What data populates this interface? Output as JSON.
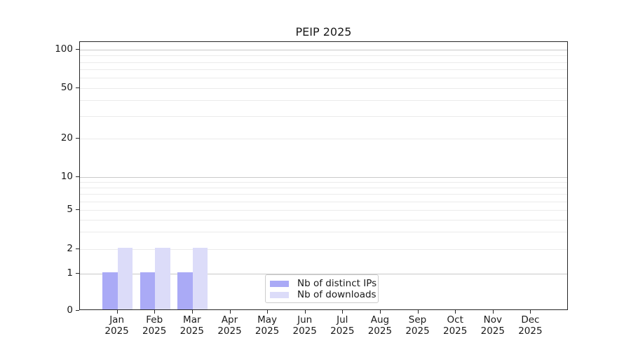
{
  "title": "PEIP 2025",
  "chart_data": {
    "type": "bar",
    "title": "PEIP 2025",
    "categories": [
      "Jan 2025",
      "Feb 2025",
      "Mar 2025",
      "Apr 2025",
      "May 2025",
      "Jun 2025",
      "Jul 2025",
      "Aug 2025",
      "Sep 2025",
      "Oct 2025",
      "Nov 2025",
      "Dec 2025"
    ],
    "series": [
      {
        "name": "Nb of distinct IPs",
        "color": "#aaaaf6",
        "values": [
          1,
          1,
          1,
          0,
          0,
          0,
          0,
          0,
          0,
          0,
          0,
          0
        ]
      },
      {
        "name": "Nb of downloads",
        "color": "#dcdcf9",
        "values": [
          2,
          2,
          2,
          0,
          0,
          0,
          0,
          0,
          0,
          0,
          0,
          0
        ]
      }
    ],
    "xlabel": "",
    "ylabel": "",
    "yscale": "symlog",
    "ylim": [
      0,
      100
    ],
    "ytick_labels": [
      100,
      50,
      20,
      10,
      5,
      2,
      1,
      0
    ],
    "major_grid_values": [
      1,
      10,
      100
    ],
    "minor_grid_values": [
      2,
      3,
      4,
      5,
      6,
      7,
      8,
      9,
      20,
      30,
      40,
      50,
      60,
      70,
      80,
      90
    ],
    "grid": "horizontal",
    "legend_position": "lower center",
    "colors": {
      "bar_distinct_ips": "#aaaaf6",
      "bar_downloads": "#dcdcf9",
      "major_grid": "#c9c9c9",
      "minor_grid": "#ebebeb",
      "axis": "#262626",
      "text": "#1a1a1a",
      "background": "#ffffff"
    }
  }
}
